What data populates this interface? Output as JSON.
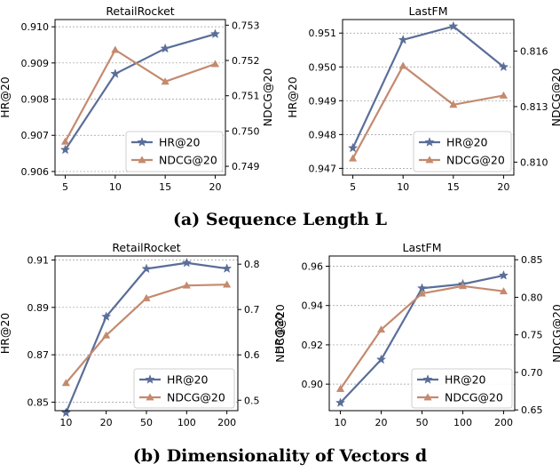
{
  "captions": {
    "a": "(a) Sequence Length L",
    "b": "(b) Dimensionality of Vectors d"
  },
  "colors": {
    "hr": "#5a6e99",
    "ndcg": "#c48a6e",
    "grid": "#9a9a9a"
  },
  "chart_data": [
    {
      "type": "line",
      "title": "RetailRocket",
      "categories": [
        "5",
        "10",
        "15",
        "20"
      ],
      "ylabel": "HR@20",
      "y2label": "NDCG@20",
      "ylim": [
        0.9059,
        0.9102
      ],
      "y2lim": [
        0.74875,
        0.75316
      ],
      "yticks": [
        0.906,
        0.907,
        0.908,
        0.909,
        0.91
      ],
      "y2ticks": [
        0.749,
        0.75,
        0.751,
        0.752,
        0.753
      ],
      "ytick_labels": [
        "0.906",
        "0.907",
        "0.908",
        "0.909",
        "0.910"
      ],
      "y2tick_labels": [
        "0.749",
        "0.750",
        "0.751",
        "0.752",
        "0.753"
      ],
      "grid": true,
      "legend": "bottom-right",
      "series": [
        {
          "name": "HR@20",
          "axis": "left",
          "marker": "star",
          "values": [
            0.9066,
            0.9087,
            0.9094,
            0.9098
          ]
        },
        {
          "name": "NDCG@20",
          "axis": "right",
          "marker": "triangle",
          "values": [
            0.7497,
            0.7523,
            0.7514,
            0.7519
          ]
        }
      ]
    },
    {
      "type": "line",
      "title": "LastFM",
      "categories": [
        "5",
        "10",
        "15",
        "20"
      ],
      "ylabel": "HR@20",
      "y2label": "NDCG@20",
      "ylim": [
        0.9468,
        0.9514
      ],
      "y2lim": [
        0.8093,
        0.8177
      ],
      "yticks": [
        0.947,
        0.948,
        0.949,
        0.95,
        0.951
      ],
      "y2ticks": [
        0.81,
        0.813,
        0.816
      ],
      "ytick_labels": [
        "0.947",
        "0.948",
        "0.949",
        "0.950",
        "0.951"
      ],
      "y2tick_labels": [
        "0.810",
        "0.813",
        "0.816"
      ],
      "grid": true,
      "legend": "bottom-right",
      "series": [
        {
          "name": "HR@20",
          "axis": "left",
          "marker": "star",
          "values": [
            0.9476,
            0.9508,
            0.9512,
            0.95
          ]
        },
        {
          "name": "NDCG@20",
          "axis": "right",
          "marker": "triangle",
          "values": [
            0.8102,
            0.8152,
            0.8131,
            0.8136
          ]
        }
      ]
    },
    {
      "type": "line",
      "title": "RetailRocket",
      "categories": [
        "10",
        "20",
        "50",
        "100",
        "200"
      ],
      "ylabel": "HR@20",
      "y2label": "NDCG@20",
      "ylim": [
        0.8464,
        0.9117
      ],
      "y2lim": [
        0.477,
        0.818
      ],
      "yticks": [
        0.85,
        0.87,
        0.89,
        0.91
      ],
      "y2ticks": [
        0.5,
        0.6,
        0.7,
        0.8
      ],
      "ytick_labels": [
        "0.85",
        "0.87",
        "0.89",
        "0.91"
      ],
      "y2tick_labels": [
        "0.5",
        "0.6",
        "0.7",
        "0.8"
      ],
      "grid": true,
      "legend": "bottom-right",
      "series": [
        {
          "name": "HR@20",
          "axis": "left",
          "marker": "star",
          "values": [
            0.8455,
            0.8861,
            0.9063,
            0.9088,
            0.9064
          ]
        },
        {
          "name": "NDCG@20",
          "axis": "right",
          "marker": "triangle",
          "values": [
            0.538,
            0.643,
            0.725,
            0.753,
            0.755
          ]
        }
      ]
    },
    {
      "type": "line",
      "title": "LastFM",
      "categories": [
        "10",
        "20",
        "50",
        "100",
        "200"
      ],
      "ylabel": "HR@20",
      "y2label": "NDCG@20",
      "ylim": [
        0.8865,
        0.9652
      ],
      "y2lim": [
        0.649,
        0.855
      ],
      "yticks": [
        0.9,
        0.92,
        0.94,
        0.96
      ],
      "y2ticks": [
        0.65,
        0.7,
        0.75,
        0.8,
        0.85
      ],
      "ytick_labels": [
        "0.90",
        "0.92",
        "0.94",
        "0.96"
      ],
      "y2tick_labels": [
        "0.65",
        "0.70",
        "0.75",
        "0.80",
        "0.85"
      ],
      "grid": true,
      "legend": "bottom-right",
      "series": [
        {
          "name": "HR@20",
          "axis": "left",
          "marker": "star",
          "values": [
            0.8905,
            0.9125,
            0.9488,
            0.9509,
            0.9553
          ]
        },
        {
          "name": "NDCG@20",
          "axis": "right",
          "marker": "triangle",
          "values": [
            0.678,
            0.757,
            0.805,
            0.815,
            0.808
          ]
        }
      ]
    }
  ]
}
